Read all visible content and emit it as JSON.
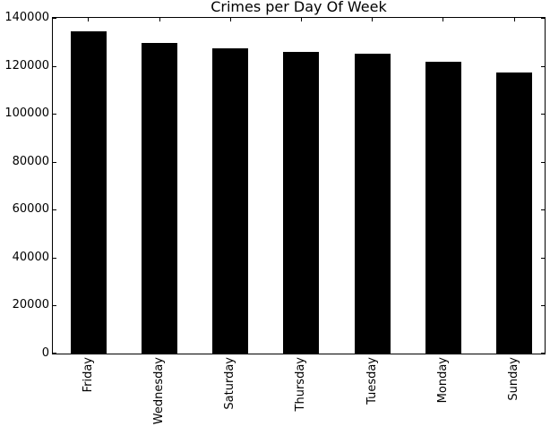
{
  "chart_data": {
    "type": "bar",
    "title": "Crimes per Day Of Week",
    "categories": [
      "Friday",
      "Wednesday",
      "Saturday",
      "Thursday",
      "Tuesday",
      "Monday",
      "Sunday"
    ],
    "values": [
      134400,
      129500,
      127200,
      125700,
      125100,
      121600,
      117200
    ],
    "xlabel": "",
    "ylabel": "",
    "ylim": [
      0,
      140000
    ],
    "yticks": [
      0,
      20000,
      40000,
      60000,
      80000,
      100000,
      120000,
      140000
    ],
    "ytick_labels": [
      "0",
      "20000",
      "40000",
      "60000",
      "80000",
      "100000",
      "120000",
      "140000"
    ],
    "grid": false,
    "legend_position": "none",
    "colors": {
      "bar": "#000000",
      "background": "#ffffff",
      "text": "#000000",
      "spine": "#000000"
    }
  }
}
